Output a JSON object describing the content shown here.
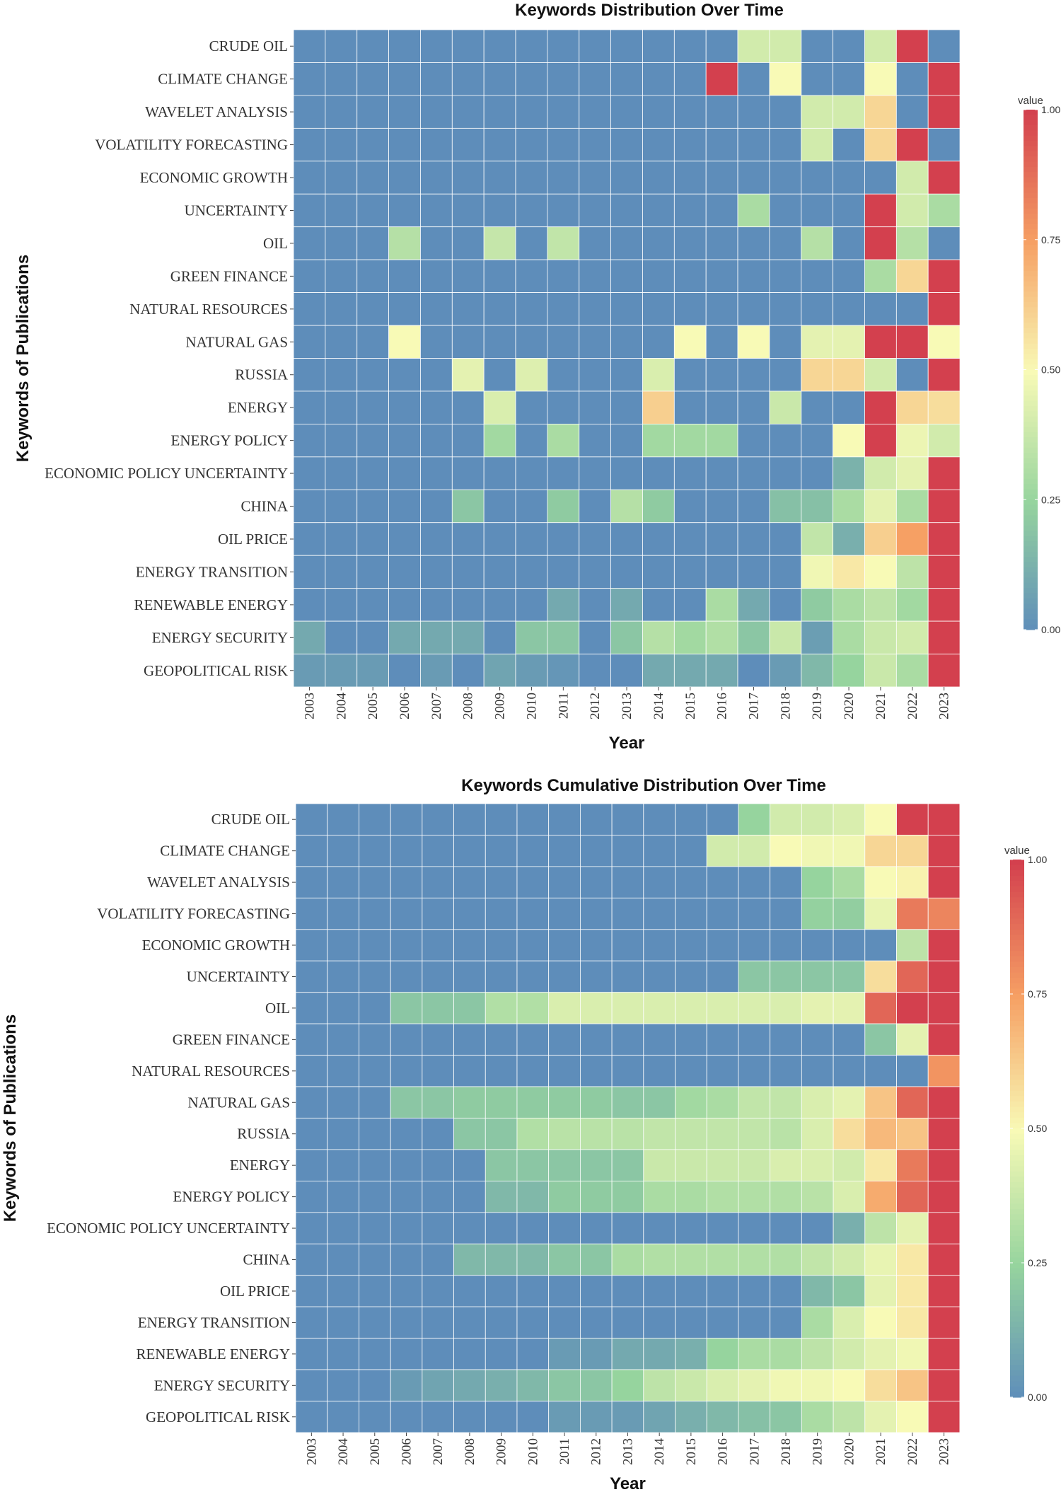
{
  "chart_data": [
    {
      "type": "heatmap",
      "title": "Keywords Distribution Over Time",
      "xlabel": "Year",
      "ylabel": "Keywords of Publications",
      "x": [
        "2003",
        "2004",
        "2005",
        "2006",
        "2007",
        "2008",
        "2009",
        "2010",
        "2011",
        "2012",
        "2013",
        "2014",
        "2015",
        "2016",
        "2017",
        "2018",
        "2019",
        "2020",
        "2021",
        "2022",
        "2023"
      ],
      "y": [
        "CRUDE OIL",
        "CLIMATE CHANGE",
        "WAVELET ANALYSIS",
        "VOLATILITY FORECASTING",
        "ECONOMIC GROWTH",
        "UNCERTAINTY",
        "OIL",
        "GREEN FINANCE",
        "NATURAL RESOURCES",
        "NATURAL GAS",
        "RUSSIA",
        "ENERGY",
        "ENERGY POLICY",
        "ECONOMIC POLICY UNCERTAINTY",
        "CHINA",
        "OIL PRICE",
        "ENERGY TRANSITION",
        "RENEWABLE ENERGY",
        "ENERGY SECURITY",
        "GEOPOLITICAL RISK"
      ],
      "legend": {
        "title": "value",
        "ticks": [
          "0.00",
          "0.25",
          "0.50",
          "0.75",
          "1.00"
        ],
        "range": [
          0,
          1
        ]
      },
      "values": [
        [
          0,
          0,
          0,
          0,
          0,
          0,
          0,
          0,
          0,
          0,
          0,
          0,
          0,
          0,
          0.4,
          0.4,
          0,
          0,
          0.4,
          1,
          0
        ],
        [
          0,
          0,
          0,
          0,
          0,
          0,
          0,
          0,
          0,
          0,
          0,
          0,
          0,
          1,
          0,
          0.5,
          0,
          0,
          0.5,
          0,
          1
        ],
        [
          0,
          0,
          0,
          0,
          0,
          0,
          0,
          0,
          0,
          0,
          0,
          0,
          0,
          0,
          0,
          0,
          0.4,
          0.4,
          0.6,
          0,
          1
        ],
        [
          0,
          0,
          0,
          0,
          0,
          0,
          0,
          0,
          0,
          0,
          0,
          0,
          0,
          0,
          0,
          0,
          0.4,
          0,
          0.6,
          1,
          0
        ],
        [
          0,
          0,
          0,
          0,
          0,
          0,
          0,
          0,
          0,
          0,
          0,
          0,
          0,
          0,
          0,
          0,
          0,
          0,
          0,
          0.4,
          1
        ],
        [
          0,
          0,
          0,
          0,
          0,
          0,
          0,
          0,
          0,
          0,
          0,
          0,
          0,
          0,
          0.3,
          0,
          0,
          0,
          1,
          0.4,
          0.3
        ],
        [
          0,
          0,
          0,
          0.33,
          0,
          0,
          0.37,
          0,
          0.36,
          0,
          0,
          0,
          0,
          0,
          0,
          0,
          0.33,
          0,
          1,
          0.33,
          0
        ],
        [
          0,
          0,
          0,
          0,
          0,
          0,
          0,
          0,
          0,
          0,
          0,
          0,
          0,
          0,
          0,
          0,
          0,
          0,
          0.3,
          0.6,
          1
        ],
        [
          0,
          0,
          0,
          0,
          0,
          0,
          0,
          0,
          0,
          0,
          0,
          0,
          0,
          0,
          0,
          0,
          0,
          0,
          0,
          0,
          1
        ],
        [
          0,
          0,
          0,
          0.5,
          0,
          0,
          0,
          0,
          0,
          0,
          0,
          0,
          0.5,
          0,
          0.5,
          0,
          0.45,
          0.45,
          1,
          1,
          0.5
        ],
        [
          0,
          0,
          0,
          0,
          0,
          0.45,
          0,
          0.43,
          0,
          0,
          0,
          0.42,
          0,
          0,
          0,
          0,
          0.6,
          0.6,
          0.4,
          0,
          1
        ],
        [
          0,
          0,
          0,
          0,
          0,
          0,
          0.42,
          0,
          0,
          0,
          0,
          0.62,
          0,
          0,
          0,
          0.38,
          0,
          0,
          1,
          0.6,
          0.58
        ],
        [
          0,
          0,
          0,
          0,
          0,
          0,
          0.28,
          0,
          0.3,
          0,
          0,
          0.28,
          0.28,
          0.28,
          0,
          0,
          0,
          0.5,
          1,
          0.47,
          0.4
        ],
        [
          0,
          0,
          0,
          0,
          0,
          0,
          0,
          0,
          0,
          0,
          0,
          0,
          0,
          0,
          0,
          0,
          0,
          0.13,
          0.4,
          0.45,
          1
        ],
        [
          0,
          0,
          0,
          0,
          0,
          0.2,
          0,
          0,
          0.22,
          0,
          0.33,
          0.22,
          0,
          0,
          0,
          0.18,
          0.18,
          0.3,
          0.45,
          0.3,
          1
        ],
        [
          0,
          0,
          0,
          0,
          0,
          0,
          0,
          0,
          0,
          0,
          0,
          0,
          0,
          0,
          0,
          0,
          0.36,
          0.12,
          0.62,
          0.75,
          1
        ],
        [
          0,
          0,
          0,
          0,
          0,
          0,
          0,
          0,
          0,
          0,
          0,
          0,
          0,
          0,
          0,
          0,
          0.48,
          0.55,
          0.5,
          0.35,
          1
        ],
        [
          0,
          0,
          0,
          0,
          0,
          0,
          0,
          0,
          0.1,
          0,
          0.1,
          0,
          0,
          0.3,
          0.1,
          0,
          0.22,
          0.3,
          0.35,
          0.28,
          1
        ],
        [
          0.1,
          0,
          0,
          0.1,
          0.1,
          0.1,
          0,
          0.2,
          0.2,
          0,
          0.2,
          0.33,
          0.28,
          0.32,
          0.2,
          0.38,
          0.06,
          0.3,
          0.38,
          0.4,
          1
        ],
        [
          0.05,
          0.05,
          0.05,
          0,
          0.05,
          0,
          0.08,
          0.05,
          0.03,
          0,
          0,
          0.1,
          0.1,
          0.1,
          0,
          0.05,
          0.15,
          0.25,
          0.38,
          0.3,
          1
        ]
      ]
    },
    {
      "type": "heatmap",
      "title": "Keywords Cumulative Distribution Over Time",
      "xlabel": "Year",
      "ylabel": "Keywords of Publications",
      "x": [
        "2003",
        "2004",
        "2005",
        "2006",
        "2007",
        "2008",
        "2009",
        "2010",
        "2011",
        "2012",
        "2013",
        "2014",
        "2015",
        "2016",
        "2017",
        "2018",
        "2019",
        "2020",
        "2021",
        "2022",
        "2023"
      ],
      "y": [
        "CRUDE OIL",
        "CLIMATE CHANGE",
        "WAVELET ANALYSIS",
        "VOLATILITY FORECASTING",
        "ECONOMIC GROWTH",
        "UNCERTAINTY",
        "OIL",
        "GREEN FINANCE",
        "NATURAL RESOURCES",
        "NATURAL GAS",
        "RUSSIA",
        "ENERGY",
        "ENERGY POLICY",
        "ECONOMIC POLICY UNCERTAINTY",
        "CHINA",
        "OIL PRICE",
        "ENERGY TRANSITION",
        "RENEWABLE ENERGY",
        "ENERGY SECURITY",
        "GEOPOLITICAL RISK"
      ],
      "legend": {
        "title": "value",
        "ticks": [
          "0.00",
          "0.25",
          "0.50",
          "0.75",
          "1.00"
        ],
        "range": [
          0,
          1
        ]
      },
      "values": [
        [
          0,
          0,
          0,
          0,
          0,
          0,
          0,
          0,
          0,
          0,
          0,
          0,
          0,
          0,
          0.25,
          0.4,
          0.4,
          0.42,
          0.5,
          1,
          1
        ],
        [
          0,
          0,
          0,
          0,
          0,
          0,
          0,
          0,
          0,
          0,
          0,
          0,
          0,
          0.4,
          0.4,
          0.5,
          0.48,
          0.48,
          0.6,
          0.6,
          1
        ],
        [
          0,
          0,
          0,
          0,
          0,
          0,
          0,
          0,
          0,
          0,
          0,
          0,
          0,
          0,
          0,
          0,
          0.25,
          0.3,
          0.5,
          0.52,
          1
        ],
        [
          0,
          0,
          0,
          0,
          0,
          0,
          0,
          0,
          0,
          0,
          0,
          0,
          0,
          0,
          0,
          0,
          0.24,
          0.23,
          0.46,
          0.85,
          0.82
        ],
        [
          0,
          0,
          0,
          0,
          0,
          0,
          0,
          0,
          0,
          0,
          0,
          0,
          0,
          0,
          0,
          0,
          0,
          0,
          0,
          0.35,
          1
        ],
        [
          0,
          0,
          0,
          0,
          0,
          0,
          0,
          0,
          0,
          0,
          0,
          0,
          0,
          0,
          0.2,
          0.2,
          0.2,
          0.2,
          0.58,
          0.9,
          1
        ],
        [
          0,
          0,
          0,
          0.2,
          0.2,
          0.2,
          0.32,
          0.32,
          0.42,
          0.42,
          0.42,
          0.42,
          0.42,
          0.42,
          0.42,
          0.42,
          0.45,
          0.45,
          0.9,
          1,
          1
        ],
        [
          0,
          0,
          0,
          0,
          0,
          0,
          0,
          0,
          0,
          0,
          0,
          0,
          0,
          0,
          0,
          0,
          0,
          0,
          0.2,
          0.45,
          1
        ],
        [
          0,
          0,
          0,
          0,
          0,
          0,
          0,
          0,
          0,
          0,
          0,
          0,
          0,
          0,
          0,
          0,
          0,
          0,
          0,
          0,
          0.78
        ],
        [
          0,
          0,
          0,
          0.2,
          0.2,
          0.22,
          0.22,
          0.22,
          0.22,
          0.22,
          0.2,
          0.2,
          0.28,
          0.3,
          0.36,
          0.36,
          0.42,
          0.45,
          0.65,
          0.9,
          1
        ],
        [
          0,
          0,
          0,
          0,
          0,
          0.2,
          0.2,
          0.32,
          0.34,
          0.34,
          0.34,
          0.36,
          0.36,
          0.36,
          0.36,
          0.34,
          0.42,
          0.58,
          0.68,
          0.65,
          1
        ],
        [
          0,
          0,
          0,
          0,
          0,
          0,
          0.2,
          0.2,
          0.2,
          0.2,
          0.2,
          0.38,
          0.38,
          0.38,
          0.38,
          0.42,
          0.42,
          0.4,
          0.55,
          0.85,
          1
        ],
        [
          0,
          0,
          0,
          0,
          0,
          0,
          0.15,
          0.15,
          0.22,
          0.22,
          0.22,
          0.3,
          0.3,
          0.32,
          0.32,
          0.32,
          0.34,
          0.42,
          0.72,
          0.9,
          1
        ],
        [
          0,
          0,
          0,
          0,
          0,
          0,
          0,
          0,
          0,
          0,
          0,
          0,
          0,
          0,
          0,
          0,
          0,
          0.12,
          0.35,
          0.45,
          1
        ],
        [
          0,
          0,
          0,
          0,
          0,
          0.15,
          0.15,
          0.15,
          0.2,
          0.2,
          0.3,
          0.32,
          0.32,
          0.32,
          0.32,
          0.32,
          0.36,
          0.4,
          0.46,
          0.55,
          1
        ],
        [
          0,
          0,
          0,
          0,
          0,
          0,
          0,
          0,
          0,
          0,
          0,
          0,
          0,
          0,
          0,
          0,
          0.15,
          0.2,
          0.45,
          0.55,
          1
        ],
        [
          0,
          0,
          0,
          0,
          0,
          0,
          0,
          0,
          0,
          0,
          0,
          0,
          0,
          0,
          0,
          0,
          0.3,
          0.42,
          0.5,
          0.55,
          1
        ],
        [
          0,
          0,
          0,
          0,
          0,
          0,
          0,
          0,
          0.05,
          0.05,
          0.1,
          0.1,
          0.12,
          0.25,
          0.3,
          0.3,
          0.35,
          0.4,
          0.45,
          0.48,
          1
        ],
        [
          0,
          0,
          0,
          0.05,
          0.08,
          0.1,
          0.12,
          0.15,
          0.2,
          0.2,
          0.25,
          0.35,
          0.38,
          0.42,
          0.45,
          0.48,
          0.48,
          0.5,
          0.58,
          0.65,
          1
        ],
        [
          0,
          0,
          0,
          0,
          0,
          0,
          0,
          0,
          0.05,
          0.05,
          0.05,
          0.08,
          0.12,
          0.15,
          0.18,
          0.2,
          0.3,
          0.35,
          0.45,
          0.5,
          1
        ]
      ]
    }
  ]
}
